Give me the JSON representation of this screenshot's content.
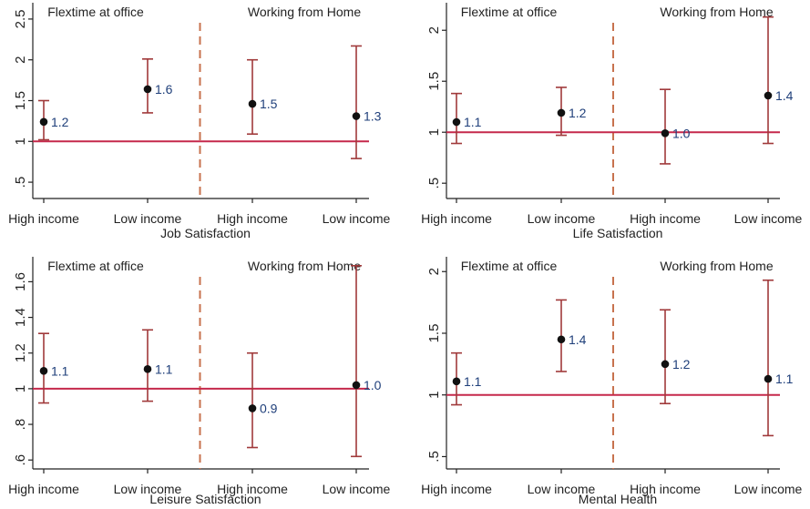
{
  "colors": {
    "errorbar": "#a0393a",
    "refline": "#c5284b",
    "divider": "#c7724e",
    "point": "#111111",
    "value_label": "#1f3f7a",
    "axis": "#222222"
  },
  "chart_data": [
    {
      "type": "scatter",
      "title": "",
      "xlabel": "Job Satisfaction",
      "ylabel": "",
      "group_labels": [
        "Flextime at office",
        "Working from Home"
      ],
      "categories": [
        "High income",
        "Low income",
        "High income",
        "Low income"
      ],
      "ylim": [
        0.3,
        2.7
      ],
      "yticks": [
        0.5,
        1,
        1.5,
        2,
        2.5
      ],
      "ytick_labels": [
        ".5",
        "1",
        "1.5",
        "2",
        "2.5"
      ],
      "reference_y": 1,
      "values": [
        1.24,
        1.64,
        1.46,
        1.31
      ],
      "ci_low": [
        1.02,
        1.35,
        1.09,
        0.79
      ],
      "ci_high": [
        1.5,
        2.01,
        2.0,
        2.17
      ],
      "value_labels": [
        "1.2",
        "1.6",
        "1.5",
        "1.3"
      ]
    },
    {
      "type": "scatter",
      "title": "",
      "xlabel": "Life Satisfaction",
      "ylabel": "",
      "group_labels": [
        "Flextime at office",
        "Working from Home"
      ],
      "categories": [
        "High income",
        "Low income",
        "High income",
        "Low income"
      ],
      "ylim": [
        0.35,
        2.27
      ],
      "yticks": [
        0.5,
        1,
        1.5,
        2
      ],
      "ytick_labels": [
        ".5",
        "1",
        "1.5",
        "2"
      ],
      "reference_y": 1,
      "values": [
        1.1,
        1.19,
        0.99,
        1.36
      ],
      "ci_low": [
        0.89,
        0.97,
        0.69,
        0.89
      ],
      "ci_high": [
        1.38,
        1.44,
        1.42,
        2.13
      ],
      "value_labels": [
        "1.1",
        "1.2",
        "1.0",
        "1.4"
      ]
    },
    {
      "type": "scatter",
      "title": "",
      "xlabel": "Leisure Satisfaction",
      "ylabel": "",
      "group_labels": [
        "Flextime at office",
        "Working from Home"
      ],
      "categories": [
        "High income",
        "Low income",
        "High income",
        "Low income"
      ],
      "ylim": [
        0.55,
        1.74
      ],
      "yticks": [
        0.6,
        0.8,
        1,
        1.2,
        1.4,
        1.6
      ],
      "ytick_labels": [
        ".6",
        ".8",
        "1",
        "1.2",
        "1.4",
        "1.6"
      ],
      "reference_y": 1,
      "values": [
        1.1,
        1.11,
        0.89,
        1.02
      ],
      "ci_low": [
        0.92,
        0.93,
        0.67,
        0.62
      ],
      "ci_high": [
        1.31,
        1.33,
        1.2,
        1.69
      ],
      "value_labels": [
        "1.1",
        "1.1",
        "0.9",
        "1.0"
      ]
    },
    {
      "type": "scatter",
      "title": "",
      "xlabel": "Mental Health",
      "ylabel": "",
      "group_labels": [
        "Flextime at office",
        "Working from Home"
      ],
      "categories": [
        "High income",
        "Low income",
        "High income",
        "Low income"
      ],
      "ylim": [
        0.4,
        2.12
      ],
      "yticks": [
        0.5,
        1,
        1.5,
        2
      ],
      "ytick_labels": [
        ".5",
        "1",
        "1.5",
        "2"
      ],
      "reference_y": 1,
      "values": [
        1.11,
        1.45,
        1.25,
        1.13
      ],
      "ci_low": [
        0.92,
        1.19,
        0.93,
        0.67
      ],
      "ci_high": [
        1.34,
        1.77,
        1.69,
        1.93
      ],
      "value_labels": [
        "1.1",
        "1.4",
        "1.2",
        "1.1"
      ]
    }
  ]
}
